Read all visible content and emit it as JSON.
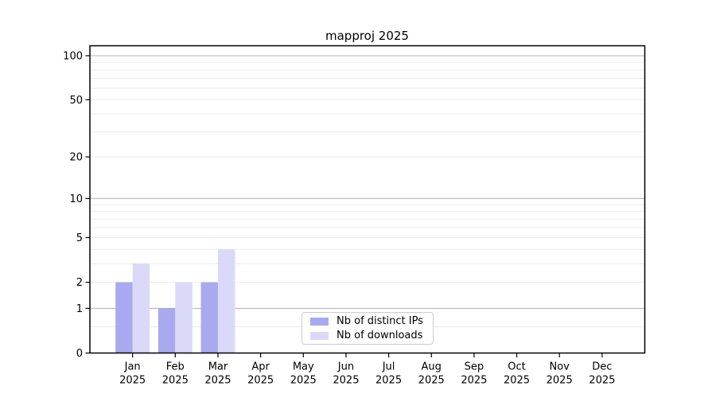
{
  "chart_data": {
    "type": "bar",
    "title": "mapproj 2025",
    "categories": [
      "Jan",
      "Feb",
      "Mar",
      "Apr",
      "May",
      "Jun",
      "Jul",
      "Aug",
      "Sep",
      "Oct",
      "Nov",
      "Dec"
    ],
    "xaxis": {
      "year_label": "2025"
    },
    "series": [
      {
        "name": "Nb of distinct IPs",
        "color": "#a9a9f0",
        "values": [
          2,
          1,
          2,
          0,
          0,
          0,
          0,
          0,
          0,
          0,
          0,
          0
        ]
      },
      {
        "name": "Nb of downloads",
        "color": "#dadaf8",
        "values": [
          3,
          2,
          4,
          0,
          0,
          0,
          0,
          0,
          0,
          0,
          0,
          0
        ]
      }
    ],
    "yaxis": {
      "scale": "log1p",
      "tick_values": [
        0,
        1,
        2,
        5,
        10,
        20,
        50,
        100
      ],
      "tick_labels": [
        "0",
        "1",
        "2",
        "5",
        "10",
        "20",
        "50",
        "100"
      ],
      "major_gridlines": [
        1,
        10,
        100
      ],
      "minor_gridlines": [
        0.5,
        2,
        3,
        4,
        5,
        6,
        7,
        8,
        9,
        20,
        30,
        40,
        50,
        60,
        70,
        80,
        90
      ],
      "ylim": [
        0,
        117
      ]
    },
    "legend": {
      "position": "lower-center"
    },
    "colors": {
      "major_grid": "#b0b0b0",
      "minor_grid": "#ececec",
      "axis": "#000000",
      "text": "#000000",
      "background": "#ffffff"
    },
    "grid": true
  }
}
